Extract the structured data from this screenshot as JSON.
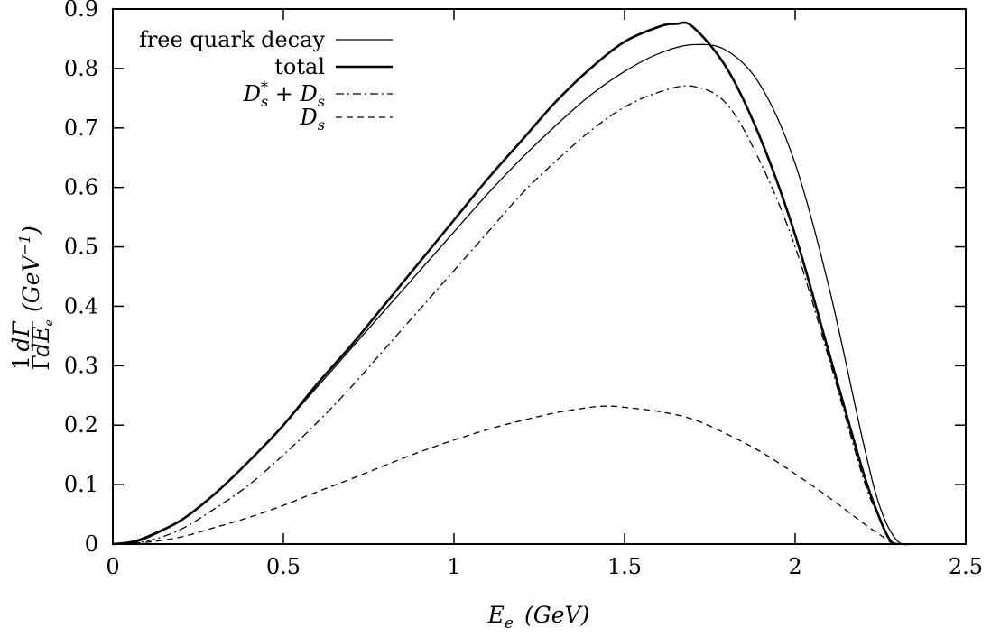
{
  "chart_data": {
    "type": "line",
    "title": "",
    "xlabel": {
      "symbol": "E",
      "subscript": "e",
      "unit": "(GeV)"
    },
    "ylabel": {
      "prefix_numerator": "1",
      "prefix_denominator": "Γ",
      "frac_numerator": "dΓ",
      "frac_denominator": "dE",
      "frac_denominator_sub": "e",
      "unit_open": "(GeV",
      "unit_exp": "−1",
      "unit_close": ")"
    },
    "xlim": [
      0,
      2.5
    ],
    "ylim": [
      0,
      0.9
    ],
    "x_ticks": [
      "0",
      "0.5",
      "1",
      "1.5",
      "2",
      "2.5"
    ],
    "y_ticks": [
      "0",
      "0.1",
      "0.2",
      "0.3",
      "0.4",
      "0.5",
      "0.6",
      "0.7",
      "0.8",
      "0.9"
    ],
    "grid": false,
    "legend_position": "top-left",
    "series": [
      {
        "name": "free quark decay",
        "style": "thin-solid",
        "x": [
          0,
          0.05,
          0.1,
          0.2,
          0.3,
          0.4,
          0.5,
          0.6,
          0.7,
          0.8,
          0.9,
          1.0,
          1.1,
          1.2,
          1.3,
          1.4,
          1.5,
          1.6,
          1.7,
          1.8,
          1.9,
          2.0,
          2.1,
          2.2,
          2.25,
          2.3,
          2.35
        ],
        "y": [
          0,
          0.002,
          0.01,
          0.04,
          0.085,
          0.14,
          0.2,
          0.265,
          0.33,
          0.395,
          0.46,
          0.525,
          0.59,
          0.65,
          0.705,
          0.755,
          0.795,
          0.825,
          0.84,
          0.83,
          0.77,
          0.64,
          0.43,
          0.17,
          0.06,
          0.005,
          0
        ]
      },
      {
        "name": "total",
        "style": "thick-solid",
        "x": [
          0,
          0.05,
          0.1,
          0.2,
          0.3,
          0.4,
          0.5,
          0.6,
          0.7,
          0.8,
          0.9,
          1.0,
          1.1,
          1.2,
          1.3,
          1.4,
          1.5,
          1.6,
          1.65,
          1.7,
          1.8,
          1.9,
          2.0,
          2.1,
          2.2,
          2.25,
          2.28,
          2.3
        ],
        "y": [
          0,
          0.003,
          0.012,
          0.04,
          0.085,
          0.14,
          0.2,
          0.27,
          0.335,
          0.405,
          0.475,
          0.545,
          0.615,
          0.68,
          0.745,
          0.8,
          0.845,
          0.87,
          0.875,
          0.87,
          0.8,
          0.68,
          0.52,
          0.32,
          0.12,
          0.04,
          0.005,
          0
        ]
      },
      {
        "name": "D*s + Ds",
        "name_parts": {
          "a": "D",
          "a_sup": "*",
          "a_sub": "s",
          "op": "+",
          "b": "D",
          "b_sub": "s"
        },
        "style": "dash-dot",
        "x": [
          0,
          0.1,
          0.2,
          0.3,
          0.4,
          0.5,
          0.6,
          0.7,
          0.8,
          0.9,
          1.0,
          1.1,
          1.2,
          1.3,
          1.4,
          1.5,
          1.6,
          1.7,
          1.8,
          1.9,
          2.0,
          2.1,
          2.2,
          2.25,
          2.28,
          2.3
        ],
        "y": [
          0,
          0.005,
          0.025,
          0.06,
          0.1,
          0.15,
          0.205,
          0.265,
          0.33,
          0.395,
          0.46,
          0.525,
          0.59,
          0.645,
          0.695,
          0.735,
          0.76,
          0.77,
          0.74,
          0.64,
          0.5,
          0.31,
          0.11,
          0.04,
          0.005,
          0
        ]
      },
      {
        "name": "Ds",
        "name_parts": {
          "a": "D",
          "a_sub": "s"
        },
        "style": "dashed",
        "x": [
          0,
          0.1,
          0.2,
          0.3,
          0.4,
          0.5,
          0.6,
          0.7,
          0.8,
          0.9,
          1.0,
          1.1,
          1.2,
          1.3,
          1.4,
          1.45,
          1.5,
          1.6,
          1.7,
          1.8,
          1.9,
          2.0,
          2.1,
          2.2,
          2.25,
          2.28,
          2.3
        ],
        "y": [
          0,
          0.003,
          0.012,
          0.028,
          0.045,
          0.065,
          0.088,
          0.11,
          0.133,
          0.155,
          0.175,
          0.193,
          0.208,
          0.221,
          0.23,
          0.232,
          0.23,
          0.223,
          0.21,
          0.185,
          0.155,
          0.118,
          0.078,
          0.035,
          0.015,
          0.003,
          0
        ]
      }
    ]
  }
}
